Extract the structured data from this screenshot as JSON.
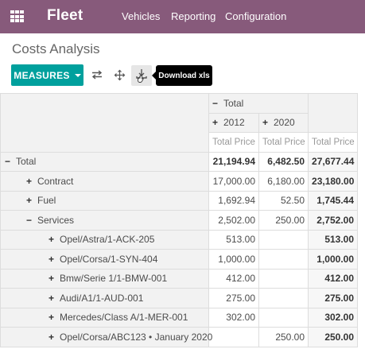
{
  "navbar": {
    "brand": "Fleet",
    "menu": [
      "Vehicles",
      "Reporting",
      "Configuration"
    ],
    "bg_color": "#875a7b"
  },
  "page": {
    "title": "Costs Analysis"
  },
  "toolbar": {
    "measures_label": "MEASURES",
    "accent_color": "#00a09d",
    "icons": [
      "flip-axis-icon",
      "expand-all-icon",
      "download-icon"
    ],
    "tooltip": "Download xls"
  },
  "pivot": {
    "col_group_label": "Total",
    "years": [
      "2012",
      "2020"
    ],
    "measure": "Total Price",
    "rows": [
      {
        "label": "Total",
        "expanded": true,
        "level": 0,
        "v2012": "21,194.94",
        "v2020": "6,482.50",
        "total": "27,677.44",
        "bold": true
      },
      {
        "label": "Contract",
        "expanded": false,
        "level": 1,
        "v2012": "17,000.00",
        "v2020": "6,180.00",
        "total": "23,180.00"
      },
      {
        "label": "Fuel",
        "expanded": false,
        "level": 1,
        "v2012": "1,692.94",
        "v2020": "52.50",
        "total": "1,745.44"
      },
      {
        "label": "Services",
        "expanded": true,
        "level": 1,
        "v2012": "2,502.00",
        "v2020": "250.00",
        "total": "2,752.00"
      },
      {
        "label": "Opel/Astra/1-ACK-205",
        "expanded": false,
        "level": 2,
        "v2012": "513.00",
        "v2020": "",
        "total": "513.00"
      },
      {
        "label": "Opel/Corsa/1-SYN-404",
        "expanded": false,
        "level": 2,
        "v2012": "1,000.00",
        "v2020": "",
        "total": "1,000.00"
      },
      {
        "label": "Bmw/Serie 1/1-BMW-001",
        "expanded": false,
        "level": 2,
        "v2012": "412.00",
        "v2020": "",
        "total": "412.00"
      },
      {
        "label": "Audi/A1/1-AUD-001",
        "expanded": false,
        "level": 2,
        "v2012": "275.00",
        "v2020": "",
        "total": "275.00"
      },
      {
        "label": "Mercedes/Class A/1-MER-001",
        "expanded": false,
        "level": 2,
        "v2012": "302.00",
        "v2020": "",
        "total": "302.00"
      },
      {
        "label": "Opel/Corsa/ABC123 • January 2020",
        "expanded": false,
        "level": 2,
        "v2012": "",
        "v2020": "250.00",
        "total": "250.00"
      }
    ]
  }
}
